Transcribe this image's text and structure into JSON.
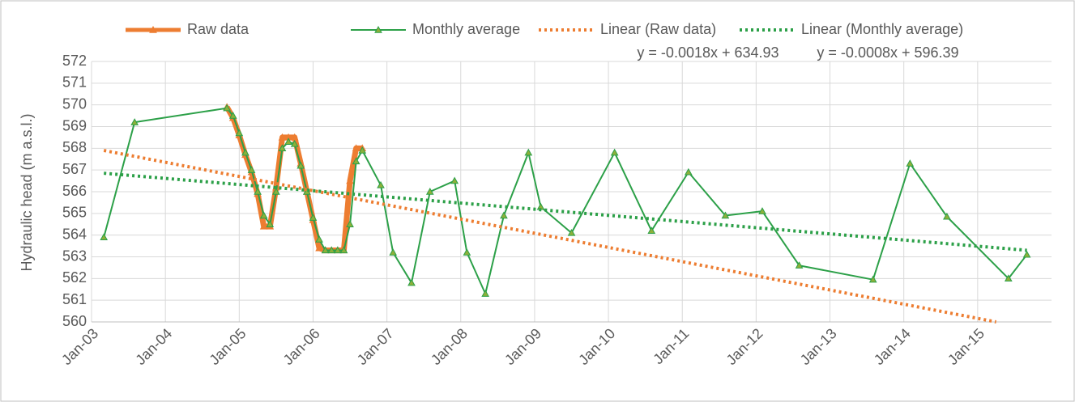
{
  "chart_data": {
    "type": "line",
    "y_label": "Hydraulic head (m a.s.l.)",
    "annotations": [
      "y = -0.0018x + 634.93",
      "y = -0.0008x + 596.39"
    ],
    "xlim": [
      "2003-01",
      "2016-01"
    ],
    "xticks": [
      {
        "value": "2003-01",
        "label": "Jan-03"
      },
      {
        "value": "2004-01",
        "label": "Jan-04"
      },
      {
        "value": "2005-01",
        "label": "Jan-05"
      },
      {
        "value": "2006-01",
        "label": "Jan-06"
      },
      {
        "value": "2007-01",
        "label": "Jan-07"
      },
      {
        "value": "2008-01",
        "label": "Jan-08"
      },
      {
        "value": "2009-01",
        "label": "Jan-09"
      },
      {
        "value": "2010-01",
        "label": "Jan-10"
      },
      {
        "value": "2011-01",
        "label": "Jan-11"
      },
      {
        "value": "2012-01",
        "label": "Jan-12"
      },
      {
        "value": "2013-01",
        "label": "Jan-13"
      },
      {
        "value": "2014-01",
        "label": "Jan-14"
      },
      {
        "value": "2015-01",
        "label": "Jan-15"
      }
    ],
    "ylim": [
      560,
      572
    ],
    "yticks": [
      560,
      561,
      562,
      563,
      564,
      565,
      566,
      567,
      568,
      569,
      570,
      571,
      572
    ],
    "grid": true,
    "legend": "top",
    "series": [
      {
        "name": "Raw data",
        "color": "#ed7d31",
        "style": "solid",
        "marker": "triangle",
        "x": [
          "2004-11",
          "2004-12",
          "2005-01",
          "2005-02",
          "2005-03",
          "2005-04",
          "2005-05",
          "2005-06",
          "2005-07",
          "2005-08",
          "2005-09",
          "2005-10",
          "2005-11",
          "2005-12",
          "2006-01",
          "2006-02",
          "2006-03",
          "2006-04",
          "2006-05",
          "2006-06",
          "2006-07",
          "2006-08",
          "2006-09"
        ],
        "values": [
          569.9,
          569.4,
          568.6,
          567.7,
          566.9,
          565.9,
          564.4,
          564.4,
          566.2,
          568.5,
          568.5,
          568.5,
          567.3,
          566.0,
          564.7,
          563.4,
          563.3,
          563.3,
          563.3,
          563.3,
          566.5,
          568.0,
          568.0
        ]
      },
      {
        "name": "Monthly average",
        "color": "#2ca048",
        "style": "solid",
        "marker": "triangle",
        "x": [
          "2003-03",
          "2003-08",
          "2004-11",
          "2004-12",
          "2005-01",
          "2005-02",
          "2005-03",
          "2005-04",
          "2005-05",
          "2005-06",
          "2005-07",
          "2005-08",
          "2005-09",
          "2005-10",
          "2005-11",
          "2005-12",
          "2006-01",
          "2006-02",
          "2006-03",
          "2006-04",
          "2006-05",
          "2006-06",
          "2006-07",
          "2006-08",
          "2006-09",
          "2006-12",
          "2007-02",
          "2007-05",
          "2007-08",
          "2007-12",
          "2008-02",
          "2008-05",
          "2008-08",
          "2008-12",
          "2009-02",
          "2009-07",
          "2010-02",
          "2010-08",
          "2011-02",
          "2011-08",
          "2012-02",
          "2012-08",
          "2013-08",
          "2014-02",
          "2014-08",
          "2015-06",
          "2015-09"
        ],
        "values": [
          563.9,
          569.2,
          569.85,
          569.5,
          568.7,
          567.8,
          567.0,
          566.0,
          564.9,
          564.5,
          566.0,
          568.0,
          568.3,
          568.2,
          567.2,
          566.0,
          564.8,
          563.8,
          563.3,
          563.3,
          563.3,
          563.3,
          564.5,
          567.4,
          567.9,
          566.3,
          563.2,
          561.8,
          566.0,
          566.5,
          563.2,
          561.3,
          564.9,
          567.8,
          565.3,
          564.1,
          567.8,
          564.2,
          566.9,
          564.9,
          565.1,
          562.6,
          561.95,
          567.3,
          564.85,
          562.0,
          563.1
        ]
      },
      {
        "name": "Linear (Raw data)",
        "color": "#ed7d31",
        "style": "dotted",
        "x": [
          "2003-03",
          "2015-04"
        ],
        "values": [
          567.9,
          560.0
        ]
      },
      {
        "name": "Linear (Monthly average)",
        "color": "#2ca048",
        "style": "dotted",
        "x": [
          "2003-03",
          "2015-09"
        ],
        "values": [
          566.85,
          563.3
        ]
      }
    ]
  }
}
